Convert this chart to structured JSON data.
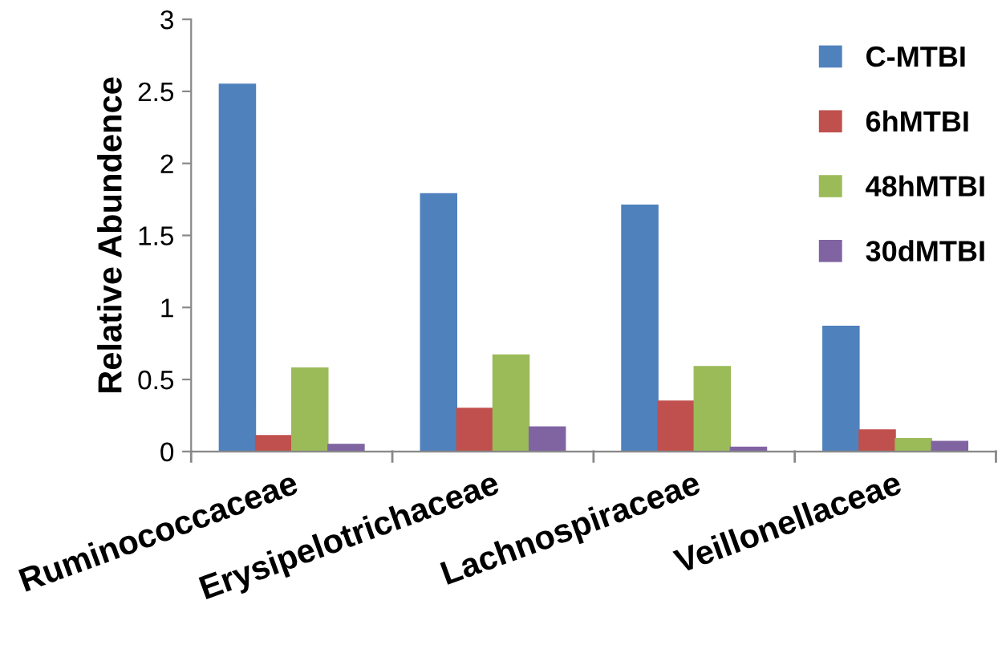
{
  "chart_data": {
    "type": "bar",
    "ylabel": "Relative Abundence",
    "categories": [
      "Ruminococcaceae",
      "Erysipelotrichaceae",
      "Lachnospiraceae",
      "Veillonellaceae"
    ],
    "series": [
      {
        "name": "C-MTBI",
        "color": "#4f81bd",
        "values": [
          2.55,
          1.79,
          1.71,
          0.87
        ]
      },
      {
        "name": "6hMTBI",
        "color": "#c0504d",
        "values": [
          0.11,
          0.3,
          0.35,
          0.15
        ]
      },
      {
        "name": "48hMTBI",
        "color": "#9bbb59",
        "values": [
          0.58,
          0.67,
          0.59,
          0.09
        ]
      },
      {
        "name": "30dMTBI",
        "color": "#8064a2",
        "values": [
          0.05,
          0.17,
          0.03,
          0.07
        ]
      }
    ],
    "ylim": [
      0,
      3
    ],
    "yticks": [
      0,
      0.5,
      1,
      1.5,
      2,
      2.5,
      3
    ],
    "grid": false,
    "legend": "top right"
  }
}
